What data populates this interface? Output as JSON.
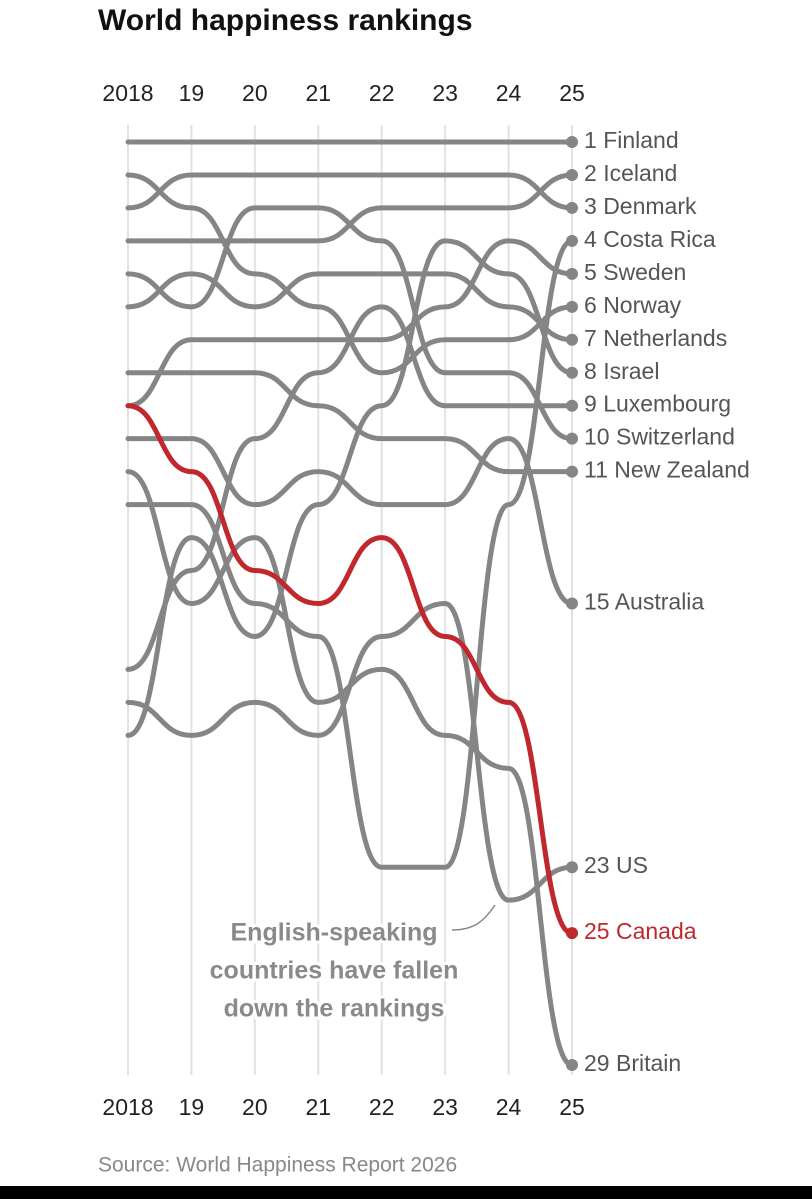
{
  "chart_data": {
    "type": "bump",
    "title": "World happiness rankings",
    "source": "Source: World Happiness Report 2026",
    "annotation": [
      "English-speaking",
      "countries have fallen",
      "down the rankings"
    ],
    "x": [
      2018,
      2019,
      2020,
      2021,
      2022,
      2023,
      2024,
      2025
    ],
    "xlim": [
      2018,
      2025
    ],
    "xticks": [
      {
        "value": 2018,
        "label": "2018"
      },
      {
        "value": 2019,
        "label": "19"
      },
      {
        "value": 2020,
        "label": "20"
      },
      {
        "value": 2021,
        "label": "21"
      },
      {
        "value": 2022,
        "label": "22"
      },
      {
        "value": 2023,
        "label": "23"
      },
      {
        "value": 2024,
        "label": "24"
      },
      {
        "value": 2025,
        "label": "25"
      }
    ],
    "ylim": [
      29,
      1
    ],
    "grid": true,
    "series": [
      {
        "name": "Finland",
        "color": "#858585",
        "values": [
          1,
          1,
          1,
          1,
          1,
          1,
          1,
          1
        ]
      },
      {
        "name": "Iceland",
        "color": "#858585",
        "values": [
          4,
          4,
          4,
          4,
          3,
          3,
          3,
          2
        ]
      },
      {
        "name": "Denmark",
        "color": "#858585",
        "values": [
          3,
          2,
          2,
          2,
          2,
          2,
          2,
          3
        ]
      },
      {
        "name": "Costa Rica",
        "color": "#858585",
        "values": [
          12,
          12,
          15,
          16,
          23,
          23,
          12,
          4
        ]
      },
      {
        "name": "Sweden",
        "color": "#858585",
        "values": [
          9,
          7,
          7,
          7,
          7,
          6,
          4,
          5
        ]
      },
      {
        "name": "Norway",
        "color": "#858585",
        "values": [
          2,
          3,
          5,
          6,
          8,
          7,
          7,
          6
        ]
      },
      {
        "name": "Netherlands",
        "color": "#858585",
        "values": [
          6,
          5,
          6,
          5,
          5,
          5,
          6,
          7
        ]
      },
      {
        "name": "Israel",
        "color": "#858585",
        "values": [
          19,
          13,
          16,
          12,
          9,
          4,
          5,
          8
        ]
      },
      {
        "name": "Luxembourg",
        "color": "#858585",
        "values": [
          17,
          14,
          10,
          8,
          6,
          9,
          9,
          9
        ]
      },
      {
        "name": "Switzerland",
        "color": "#858585",
        "values": [
          5,
          6,
          3,
          3,
          4,
          8,
          8,
          10
        ]
      },
      {
        "name": "New Zealand",
        "color": "#858585",
        "values": [
          8,
          8,
          8,
          9,
          10,
          10,
          11,
          11
        ]
      },
      {
        "name": "Australia",
        "color": "#858585",
        "values": [
          10,
          10,
          12,
          11,
          12,
          12,
          10,
          15
        ]
      },
      {
        "name": "US",
        "color": "#858585",
        "values": [
          18,
          19,
          18,
          19,
          16,
          15,
          24,
          23
        ]
      },
      {
        "name": "Canada",
        "color": "#c0282d",
        "values": [
          9,
          11,
          14,
          15,
          13,
          16,
          18,
          25
        ]
      },
      {
        "name": "Britain",
        "color": "#858585",
        "values": [
          11,
          15,
          13,
          18,
          17,
          19,
          20,
          29
        ]
      }
    ]
  }
}
